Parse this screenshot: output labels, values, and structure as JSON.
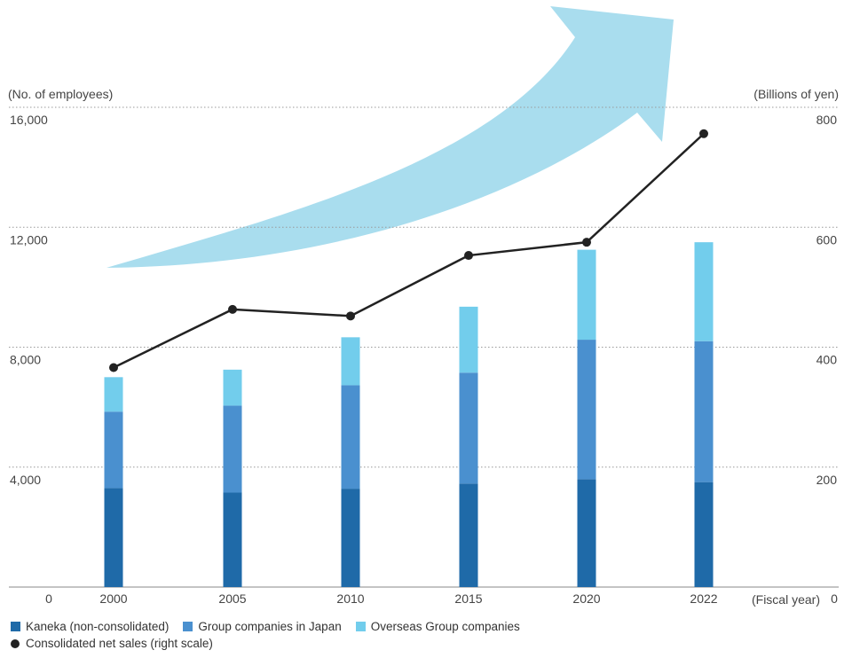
{
  "chart_data": {
    "type": "bar",
    "stacked": true,
    "categories": [
      "2000",
      "2005",
      "2010",
      "2015",
      "2020",
      "2022"
    ],
    "series": [
      {
        "name": "Kaneka (non-consolidated)",
        "values": [
          3300,
          3150,
          3280,
          3450,
          3600,
          3500
        ],
        "color": "#1f6aa8"
      },
      {
        "name": "Group companies in Japan",
        "values": [
          2550,
          2900,
          3450,
          3700,
          4650,
          4700
        ],
        "color": "#4a90cf"
      },
      {
        "name": "Overseas Group companies",
        "values": [
          1150,
          1200,
          1600,
          2200,
          3000,
          3300
        ],
        "color": "#72cdec"
      }
    ],
    "line_series": {
      "name": "Consolidated net sales (right scale)",
      "values": [
        366,
        463,
        452,
        553,
        575,
        756
      ],
      "color": "#222222"
    },
    "ylabel_left": "(No. of employees)",
    "ylabel_right": "(Billions of yen)",
    "xlabel": "(Fiscal year)",
    "ylim_left": [
      0,
      16000
    ],
    "ylim_right": [
      0,
      800
    ],
    "yticks_left": [
      "4,000",
      "8,000",
      "12,000",
      "16,000"
    ],
    "yticks_right": [
      "200",
      "400",
      "600",
      "800"
    ],
    "zero_left": "0",
    "zero_right": "0",
    "grid": "dotted horizontal",
    "legend_position": "bottom-left",
    "arrow_color": "#a9ddee"
  }
}
